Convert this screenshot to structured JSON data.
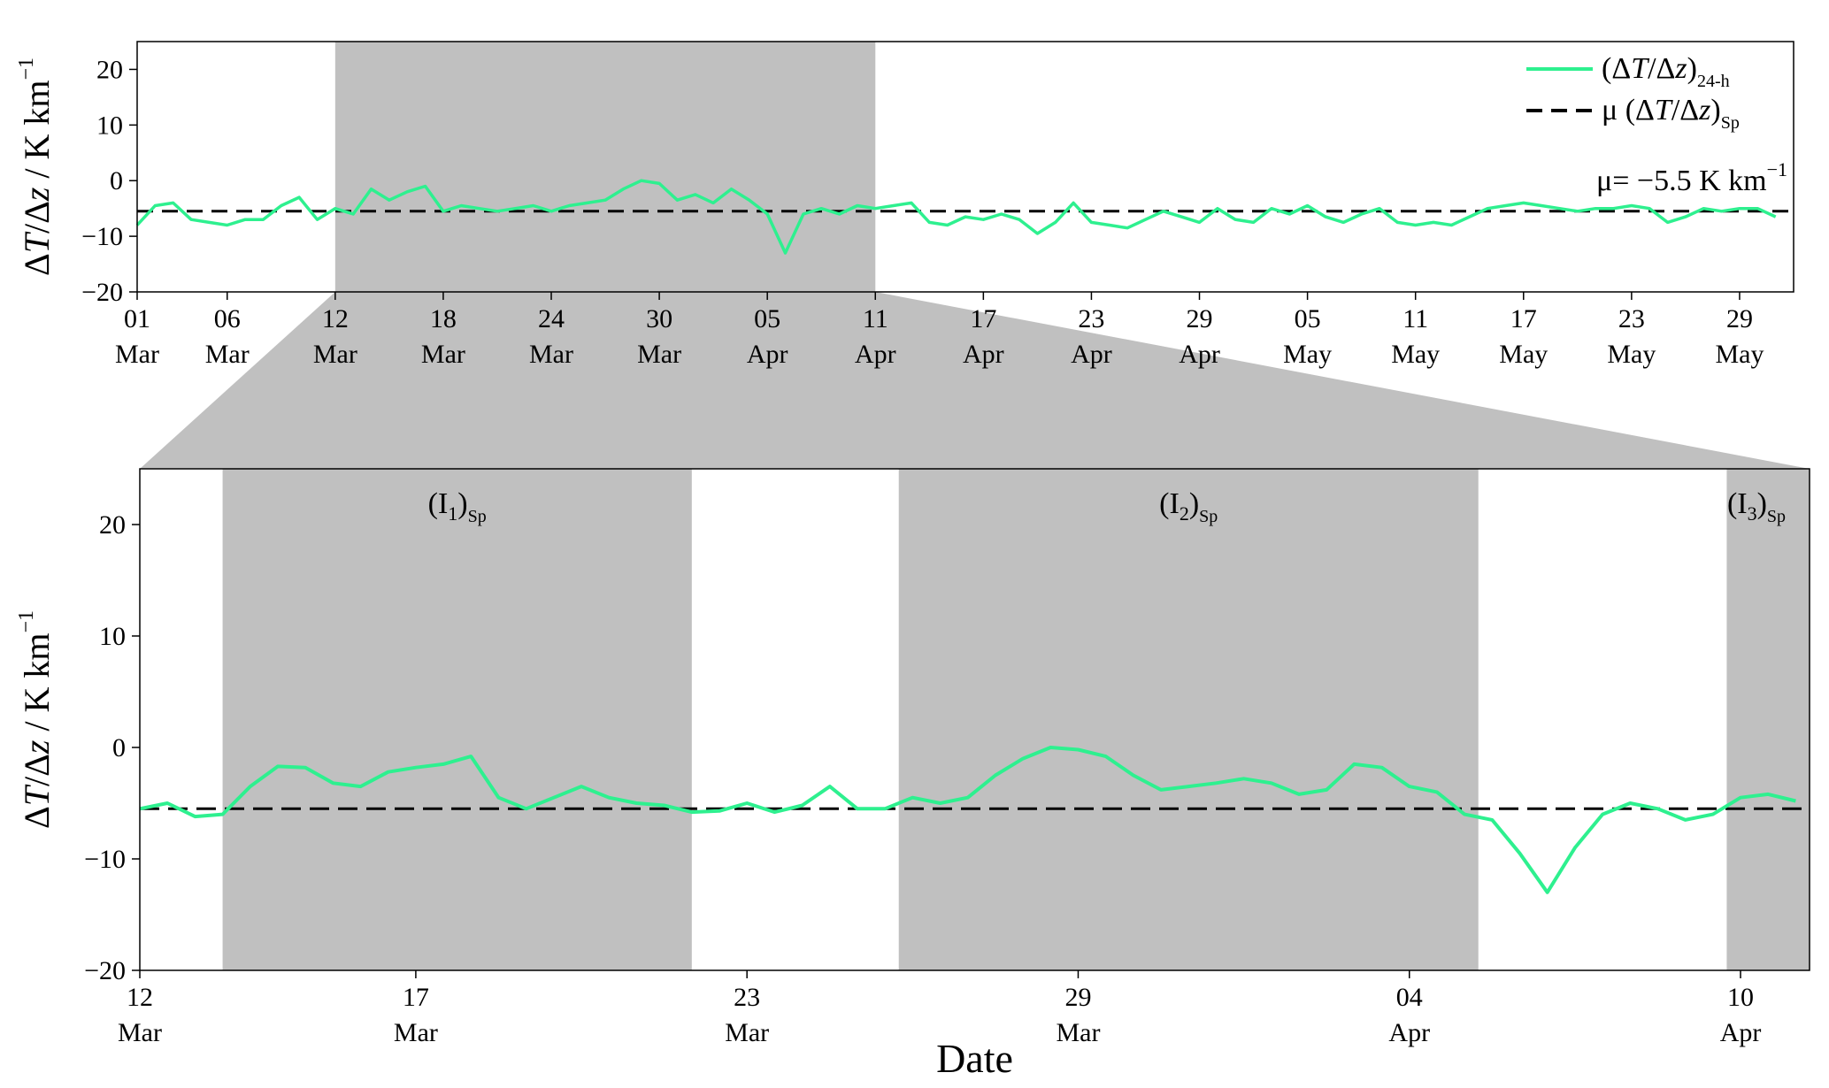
{
  "chart_data": [
    {
      "type": "line",
      "panel": "overview",
      "ylabel": "ΔT/Δz / K km−1",
      "ylim": [
        -20,
        25
      ],
      "yticks": [
        -20,
        -10,
        0,
        10,
        20
      ],
      "xlim": [
        "2021-03-01",
        "2021-06-01"
      ],
      "xticks": [
        {
          "date": "2021-03-01",
          "day": "01",
          "month": "Mar"
        },
        {
          "date": "2021-03-06",
          "day": "06",
          "month": "Mar"
        },
        {
          "date": "2021-03-12",
          "day": "12",
          "month": "Mar"
        },
        {
          "date": "2021-03-18",
          "day": "18",
          "month": "Mar"
        },
        {
          "date": "2021-03-24",
          "day": "24",
          "month": "Mar"
        },
        {
          "date": "2021-03-30",
          "day": "30",
          "month": "Mar"
        },
        {
          "date": "2021-04-05",
          "day": "05",
          "month": "Apr"
        },
        {
          "date": "2021-04-11",
          "day": "11",
          "month": "Apr"
        },
        {
          "date": "2021-04-17",
          "day": "17",
          "month": "Apr"
        },
        {
          "date": "2021-04-23",
          "day": "23",
          "month": "Apr"
        },
        {
          "date": "2021-04-29",
          "day": "29",
          "month": "Apr"
        },
        {
          "date": "2021-05-05",
          "day": "05",
          "month": "May"
        },
        {
          "date": "2021-05-11",
          "day": "11",
          "month": "May"
        },
        {
          "date": "2021-05-17",
          "day": "17",
          "month": "May"
        },
        {
          "date": "2021-05-23",
          "day": "23",
          "month": "May"
        },
        {
          "date": "2021-05-29",
          "day": "29",
          "month": "May"
        }
      ],
      "highlight_span": [
        "2021-03-12",
        "2021-04-11"
      ],
      "legend": {
        "placement": "top-right",
        "entries": [
          {
            "base": "(ΔT/Δz)",
            "sub": "24-h",
            "style": "solid",
            "color": "#2ef08f"
          },
          {
            "base": "μ (ΔT/Δz)",
            "sub": "Sp",
            "style": "dashed",
            "color": "#000000"
          }
        ]
      },
      "annotation": {
        "text": "μ= −5.5 K km",
        "sup": "−1"
      },
      "mean": -5.5,
      "series": [
        {
          "color": "#2ef08f",
          "x": [
            "2021-03-01",
            "2021-03-02",
            "2021-03-03",
            "2021-03-04",
            "2021-03-05",
            "2021-03-06",
            "2021-03-07",
            "2021-03-08",
            "2021-03-09",
            "2021-03-10",
            "2021-03-11",
            "2021-03-12",
            "2021-03-13",
            "2021-03-14",
            "2021-03-15",
            "2021-03-16",
            "2021-03-17",
            "2021-03-18",
            "2021-03-19",
            "2021-03-20",
            "2021-03-21",
            "2021-03-22",
            "2021-03-23",
            "2021-03-24",
            "2021-03-25",
            "2021-03-26",
            "2021-03-27",
            "2021-03-28",
            "2021-03-29",
            "2021-03-30",
            "2021-03-31",
            "2021-04-01",
            "2021-04-02",
            "2021-04-03",
            "2021-04-04",
            "2021-04-05",
            "2021-04-06",
            "2021-04-07",
            "2021-04-08",
            "2021-04-09",
            "2021-04-10",
            "2021-04-11",
            "2021-04-12",
            "2021-04-13",
            "2021-04-14",
            "2021-04-15",
            "2021-04-16",
            "2021-04-17",
            "2021-04-18",
            "2021-04-19",
            "2021-04-20",
            "2021-04-21",
            "2021-04-22",
            "2021-04-23",
            "2021-04-24",
            "2021-04-25",
            "2021-04-26",
            "2021-04-27",
            "2021-04-28",
            "2021-04-29",
            "2021-04-30",
            "2021-05-01",
            "2021-05-02",
            "2021-05-03",
            "2021-05-04",
            "2021-05-05",
            "2021-05-06",
            "2021-05-07",
            "2021-05-08",
            "2021-05-09",
            "2021-05-10",
            "2021-05-11",
            "2021-05-12",
            "2021-05-13",
            "2021-05-14",
            "2021-05-15",
            "2021-05-16",
            "2021-05-17",
            "2021-05-18",
            "2021-05-19",
            "2021-05-20",
            "2021-05-21",
            "2021-05-22",
            "2021-05-23",
            "2021-05-24",
            "2021-05-25",
            "2021-05-26",
            "2021-05-27",
            "2021-05-28",
            "2021-05-29",
            "2021-05-30",
            "2021-05-31"
          ],
          "y": [
            -8.0,
            -4.5,
            -4.0,
            -7.0,
            -7.5,
            -8.0,
            -7.0,
            -7.0,
            -4.5,
            -3.0,
            -7.0,
            -5.0,
            -6.0,
            -1.5,
            -3.5,
            -2.0,
            -1.0,
            -5.5,
            -4.5,
            -5.0,
            -5.5,
            -5.0,
            -4.5,
            -5.5,
            -4.5,
            -4.0,
            -3.5,
            -1.5,
            0.0,
            -0.5,
            -3.5,
            -2.5,
            -4.0,
            -1.5,
            -3.5,
            -6.0,
            -13.0,
            -6.0,
            -5.0,
            -6.0,
            -4.5,
            -5.0,
            -4.5,
            -4.0,
            -7.5,
            -8.0,
            -6.5,
            -7.0,
            -6.0,
            -7.0,
            -9.5,
            -7.5,
            -4.0,
            -7.5,
            -8.0,
            -8.5,
            -7.0,
            -5.5,
            -6.5,
            -7.5,
            -5.0,
            -7.0,
            -7.5,
            -5.0,
            -6.0,
            -4.5,
            -6.5,
            -7.5,
            -6.0,
            -5.0,
            -7.5,
            -8.0,
            -7.5,
            -8.0,
            -6.5,
            -5.0,
            -4.5,
            -4.0,
            -4.5,
            -5.0,
            -5.5,
            -5.0,
            -5.0,
            -4.5,
            -5.0,
            -7.5,
            -6.5,
            -5.0,
            -5.5,
            -5.0,
            -5.0,
            -6.5
          ]
        }
      ]
    },
    {
      "type": "line",
      "panel": "zoom",
      "ylabel": "ΔT/Δz / K km−1",
      "xlabel": "Date",
      "ylim": [
        -20,
        25
      ],
      "yticks": [
        -20,
        -10,
        0,
        10,
        20
      ],
      "xlim": [
        "2021-03-12",
        "2021-04-11T06:00"
      ],
      "xticks": [
        {
          "date": "2021-03-12",
          "day": "12",
          "month": "Mar"
        },
        {
          "date": "2021-03-17",
          "day": "17",
          "month": "Mar"
        },
        {
          "date": "2021-03-23",
          "day": "23",
          "month": "Mar"
        },
        {
          "date": "2021-03-29",
          "day": "29",
          "month": "Mar"
        },
        {
          "date": "2021-04-04",
          "day": "04",
          "month": "Apr"
        },
        {
          "date": "2021-04-10",
          "day": "10",
          "month": "Apr"
        }
      ],
      "mean": -5.5,
      "intervals": [
        {
          "base": "(I",
          "num": "1",
          "close": ")",
          "sub": "Sp",
          "start": "2021-03-13T12:00",
          "end": "2021-03-22T00:00"
        },
        {
          "base": "(I",
          "num": "2",
          "close": ")",
          "sub": "Sp",
          "start": "2021-03-25T18:00",
          "end": "2021-04-05T06:00"
        },
        {
          "base": "(I",
          "num": "3",
          "close": ")",
          "sub": "Sp",
          "start": "2021-04-09T18:00",
          "end": "2021-04-11T06:00"
        }
      ],
      "series": [
        {
          "color": "#2ef08f",
          "x": [
            "2021-03-12T00:00",
            "2021-03-12T12:00",
            "2021-03-13T00:00",
            "2021-03-13T12:00",
            "2021-03-14T00:00",
            "2021-03-14T12:00",
            "2021-03-15T00:00",
            "2021-03-15T12:00",
            "2021-03-16T00:00",
            "2021-03-16T12:00",
            "2021-03-17T00:00",
            "2021-03-17T12:00",
            "2021-03-18T00:00",
            "2021-03-18T12:00",
            "2021-03-19T00:00",
            "2021-03-19T12:00",
            "2021-03-20T00:00",
            "2021-03-20T12:00",
            "2021-03-21T00:00",
            "2021-03-21T12:00",
            "2021-03-22T00:00",
            "2021-03-22T12:00",
            "2021-03-23T00:00",
            "2021-03-23T12:00",
            "2021-03-24T00:00",
            "2021-03-24T12:00",
            "2021-03-25T00:00",
            "2021-03-25T12:00",
            "2021-03-26T00:00",
            "2021-03-26T12:00",
            "2021-03-27T00:00",
            "2021-03-27T12:00",
            "2021-03-28T00:00",
            "2021-03-28T12:00",
            "2021-03-29T00:00",
            "2021-03-29T12:00",
            "2021-03-30T00:00",
            "2021-03-30T12:00",
            "2021-03-31T00:00",
            "2021-03-31T12:00",
            "2021-04-01T00:00",
            "2021-04-01T12:00",
            "2021-04-02T00:00",
            "2021-04-02T12:00",
            "2021-04-03T00:00",
            "2021-04-03T12:00",
            "2021-04-04T00:00",
            "2021-04-04T12:00",
            "2021-04-05T00:00",
            "2021-04-05T12:00",
            "2021-04-06T00:00",
            "2021-04-06T12:00",
            "2021-04-07T00:00",
            "2021-04-07T12:00",
            "2021-04-08T00:00",
            "2021-04-08T12:00",
            "2021-04-09T00:00",
            "2021-04-09T12:00",
            "2021-04-10T00:00",
            "2021-04-10T12:00",
            "2021-04-11T00:00"
          ],
          "y": [
            -5.5,
            -5.0,
            -6.2,
            -6.0,
            -3.5,
            -1.7,
            -1.8,
            -3.2,
            -3.5,
            -2.2,
            -1.8,
            -1.5,
            -0.8,
            -4.5,
            -5.5,
            -4.5,
            -3.5,
            -4.5,
            -5.0,
            -5.2,
            -5.8,
            -5.7,
            -5.0,
            -5.8,
            -5.2,
            -3.5,
            -5.5,
            -5.5,
            -4.5,
            -5.0,
            -4.5,
            -2.5,
            -1.0,
            0.0,
            -0.2,
            -0.8,
            -2.5,
            -3.8,
            -3.5,
            -3.2,
            -2.8,
            -3.2,
            -4.2,
            -3.8,
            -1.5,
            -1.8,
            -3.5,
            -4.0,
            -6.0,
            -6.5,
            -9.5,
            -13.0,
            -9.0,
            -6.0,
            -5.0,
            -5.5,
            -6.5,
            -6.0,
            -4.5,
            -4.2,
            -4.8
          ]
        }
      ]
    }
  ]
}
